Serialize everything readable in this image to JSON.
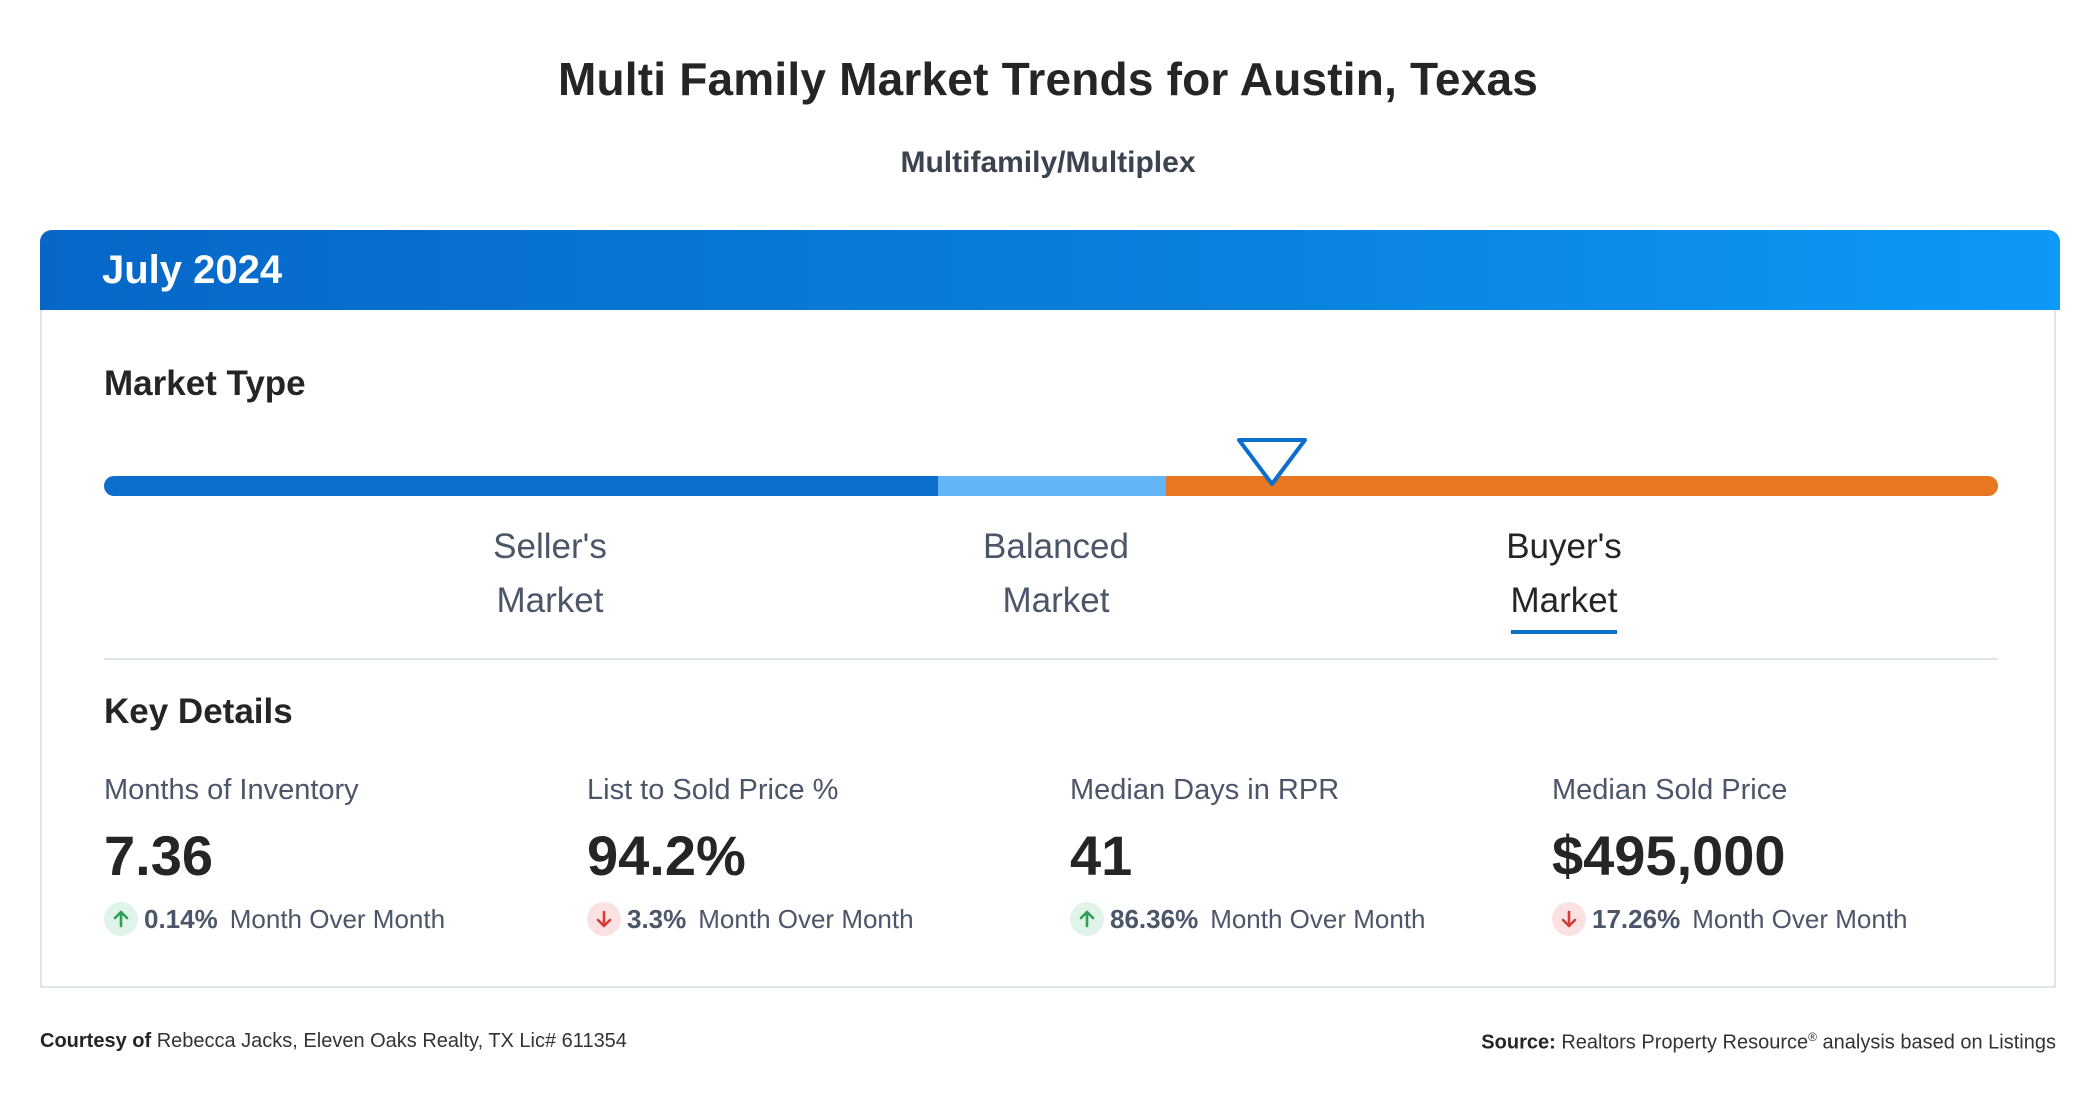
{
  "header": {
    "title": "Multi Family Market Trends for Austin, Texas",
    "subtitle": "Multifamily/Multiplex"
  },
  "card": {
    "period": "July 2024",
    "market_type": {
      "title": "Market Type",
      "segments": [
        {
          "label_line1": "Seller's",
          "label_line2": "Market",
          "color": "#0c6fcb"
        },
        {
          "label_line1": "Balanced",
          "label_line2": "Market",
          "color": "#62b6f7"
        },
        {
          "label_line1": "Buyer's",
          "label_line2": "Market",
          "color": "#e87722"
        }
      ],
      "selected": "Buyer's Market",
      "pointer_color": "#0c6fcb",
      "indicator_level": 0.615
    },
    "key_details": {
      "title": "Key Details",
      "metrics": [
        {
          "label": "Months of Inventory",
          "value": "7.36",
          "change": "0.14%",
          "change_text": "Month Over Month",
          "direction": "up",
          "icon": "arrow-up-icon"
        },
        {
          "label": "List to Sold Price %",
          "value": "94.2%",
          "change": "3.3%",
          "change_text": "Month Over Month",
          "direction": "down",
          "icon": "arrow-down-icon"
        },
        {
          "label": "Median Days in RPR",
          "value": "41",
          "change": "86.36%",
          "change_text": "Month Over Month",
          "direction": "up",
          "icon": "arrow-up-icon"
        },
        {
          "label": "Median Sold Price",
          "value": "$495,000",
          "change": "17.26%",
          "change_text": "Month Over Month",
          "direction": "down",
          "icon": "arrow-down-icon"
        }
      ]
    }
  },
  "footer": {
    "courtesy_label": "Courtesy of",
    "courtesy_text": "Rebecca Jacks, Eleven Oaks Realty, TX Lic# 611354",
    "source_label": "Source:",
    "source_text_1": "Realtors Property Resource",
    "source_registered": "®",
    "source_text_2": "analysis based on Listings"
  },
  "colors": {
    "header_gradient_start": "#0667c7",
    "header_gradient_end": "#0d99f7",
    "up_arrow": "#2f9f57",
    "down_arrow": "#d23c3c"
  }
}
